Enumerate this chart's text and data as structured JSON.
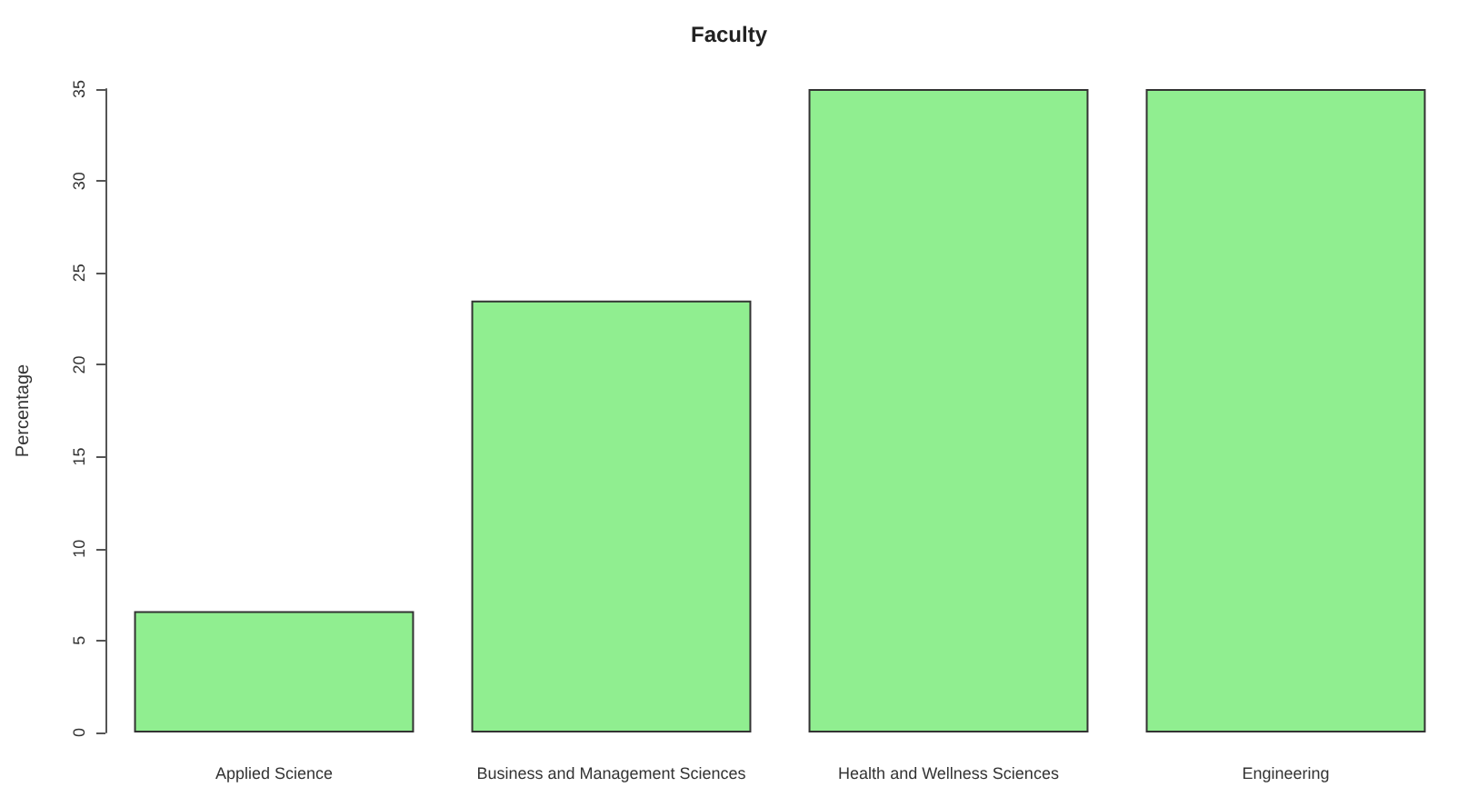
{
  "chart_data": {
    "type": "bar",
    "title": "Faculty",
    "ylabel": "Percentage",
    "categories": [
      "Applied Science",
      "Business and Management Sciences",
      "Health and Wellness Sciences",
      "Engineering"
    ],
    "values": [
      6.6,
      23.5,
      35,
      35
    ],
    "color": "#90ee90",
    "ylim": [
      0,
      35
    ],
    "yticks": [
      0,
      5,
      10,
      15,
      20,
      25,
      30,
      35
    ],
    "grid": false
  }
}
